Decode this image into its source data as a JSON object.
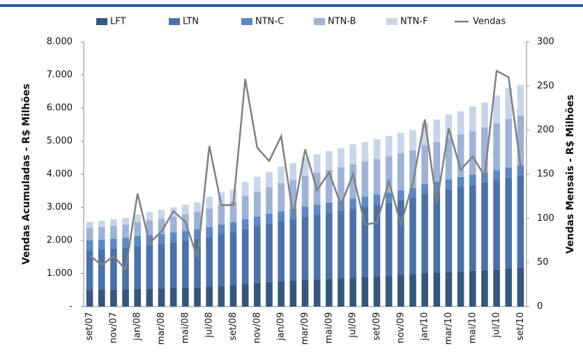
{
  "chart_data": {
    "type": "bar-line",
    "y_label": "Vendas Acumuladas - R$ Milhões",
    "y2_label": "Vendas Mensais - R$ Milhões",
    "categories": [
      "set/07",
      null,
      "nov/07",
      null,
      "jan/08",
      null,
      "mar/08",
      null,
      "mai/08",
      null,
      "jul/08",
      null,
      "set/08",
      null,
      "nov/08",
      null,
      "jan/09",
      null,
      "mar/09",
      null,
      "mai/09",
      null,
      "jul/09",
      null,
      "set/09",
      null,
      "nov/09",
      null,
      "jan/10",
      null,
      "mar/10",
      null,
      "mai/10",
      null,
      "jul/10",
      null,
      "set/10"
    ],
    "stacked": true,
    "series": [
      {
        "name": "LFT",
        "color": "#34577f",
        "values": [
          500,
          505,
          510,
          515,
          530,
          540,
          550,
          560,
          570,
          585,
          600,
          620,
          650,
          690,
          720,
          740,
          760,
          780,
          800,
          820,
          840,
          860,
          880,
          900,
          920,
          940,
          960,
          980,
          1000,
          1020,
          1040,
          1060,
          1080,
          1100,
          1120,
          1150,
          1180
        ]
      },
      {
        "name": "LTN",
        "color": "#4a72a8",
        "values": [
          1200,
          1220,
          1240,
          1260,
          1300,
          1320,
          1340,
          1380,
          1420,
          1460,
          1500,
          1560,
          1600,
          1650,
          1700,
          1760,
          1820,
          1870,
          1920,
          1960,
          2000,
          2040,
          2080,
          2120,
          2160,
          2200,
          2250,
          2300,
          2400,
          2450,
          2500,
          2560,
          2600,
          2650,
          2700,
          2750,
          2780
        ]
      },
      {
        "name": "NTN-C",
        "color": "#5b88c6",
        "values": [
          300,
          300,
          300,
          300,
          300,
          300,
          300,
          300,
          300,
          300,
          300,
          300,
          300,
          300,
          300,
          300,
          300,
          300,
          300,
          300,
          300,
          300,
          300,
          300,
          300,
          300,
          300,
          300,
          300,
          300,
          300,
          300,
          300,
          300,
          300,
          300,
          310
        ]
      },
      {
        "name": "NTN-B",
        "color": "#9db3d7",
        "values": [
          370,
          380,
          390,
          400,
          420,
          440,
          460,
          480,
          500,
          520,
          560,
          600,
          620,
          700,
          750,
          800,
          850,
          880,
          930,
          960,
          990,
          1010,
          1040,
          1060,
          1080,
          1100,
          1120,
          1140,
          1180,
          1200,
          1250,
          1280,
          1320,
          1360,
          1420,
          1480,
          1500
        ]
      },
      {
        "name": "NTN-F",
        "color": "#c9d5ea",
        "values": [
          190,
          195,
          200,
          205,
          230,
          250,
          270,
          280,
          290,
          285,
          360,
          370,
          360,
          430,
          450,
          470,
          500,
          500,
          550,
          560,
          570,
          570,
          600,
          590,
          600,
          620,
          620,
          610,
          660,
          680,
          710,
          700,
          750,
          750,
          840,
          920,
          930
        ]
      },
      {
        "name": "Vendas",
        "color": "#808080",
        "type": "line",
        "axis": "y2",
        "values": [
          58,
          47,
          57,
          42,
          128,
          72,
          85,
          108,
          96,
          55,
          182,
          115,
          115,
          258,
          180,
          165,
          193,
          103,
          178,
          132,
          152,
          115,
          150,
          93,
          95,
          142,
          93,
          140,
          212,
          117,
          202,
          155,
          170,
          148,
          267,
          260,
          160
        ]
      }
    ],
    "ylim": [
      0,
      8000
    ],
    "yticks": [
      {
        "value": 0,
        "label": "-"
      },
      {
        "value": 1000,
        "label": "1.000"
      },
      {
        "value": 2000,
        "label": "2.000"
      },
      {
        "value": 3000,
        "label": "3.000"
      },
      {
        "value": 4000,
        "label": "4.000"
      },
      {
        "value": 5000,
        "label": "5.000"
      },
      {
        "value": 6000,
        "label": "6.000"
      },
      {
        "value": 7000,
        "label": "7.000"
      },
      {
        "value": 8000,
        "label": "8.000"
      }
    ],
    "y2lim": [
      0,
      300
    ],
    "y2ticks": [
      0,
      50,
      100,
      150,
      200,
      250,
      300
    ]
  }
}
